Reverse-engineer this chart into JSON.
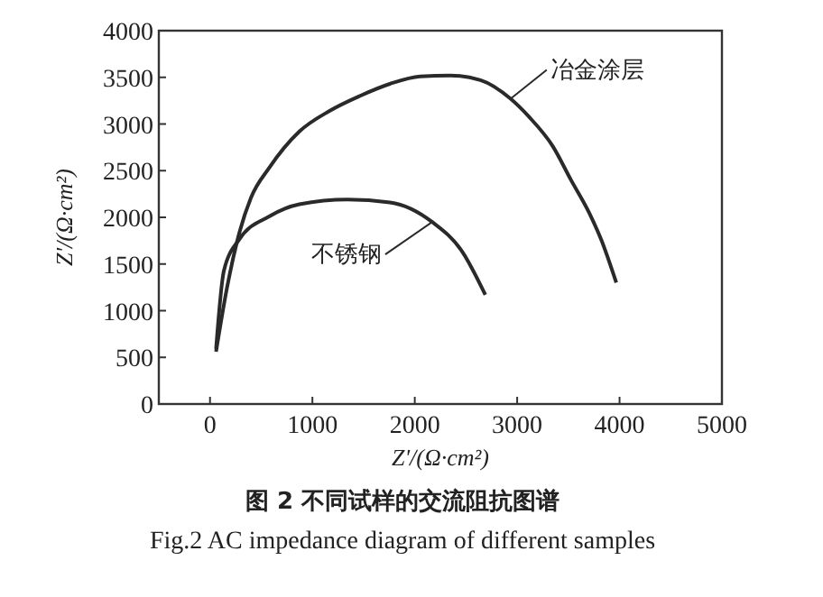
{
  "chart_data": {
    "type": "line",
    "title": "图 2  不同试样的交流阻抗图谱",
    "subtitle": "Fig.2  AC impedance diagram of different samples",
    "xlabel": "Z'/(Ω·cm²)",
    "ylabel": "Z'/(Ω·cm²)",
    "xlim": [
      -500,
      5000
    ],
    "ylim": [
      0,
      4000
    ],
    "xticks": [
      0,
      1000,
      2000,
      3000,
      4000,
      5000
    ],
    "yticks": [
      0,
      500,
      1000,
      1500,
      2000,
      2500,
      3000,
      3500,
      4000
    ],
    "grid": false,
    "marker": "none",
    "line_style": "solid",
    "series": [
      {
        "name": "冶金涂层",
        "color": "#2a2a2a",
        "x": [
          59,
          165,
          283,
          400,
          578,
          873,
          1167,
          1462,
          1757,
          2052,
          2347,
          2642,
          2936,
          3113,
          3349,
          3526,
          3703,
          3821,
          3968
        ],
        "values": [
          560,
          1240,
          1820,
          2210,
          2530,
          2920,
          3140,
          3300,
          3430,
          3510,
          3520,
          3470,
          3270,
          3080,
          2760,
          2400,
          2050,
          1760,
          1300
        ]
      },
      {
        "name": "不锈钢",
        "color": "#2a2a2a",
        "x": [
          59,
          136,
          283,
          578,
          873,
          1344,
          1757,
          2170,
          2465,
          2689
        ],
        "values": [
          590,
          1430,
          1760,
          2010,
          2140,
          2190,
          2160,
          1950,
          1630,
          1170
        ]
      }
    ]
  }
}
